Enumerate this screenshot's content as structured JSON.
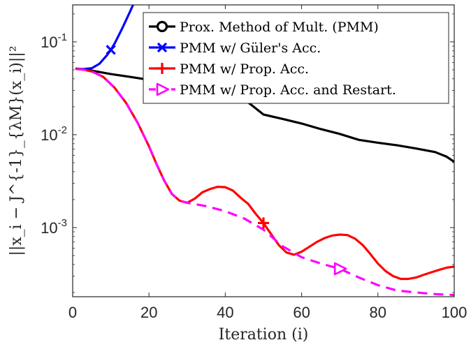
{
  "chart_data": {
    "type": "line",
    "title": "",
    "xlabel": "Iteration (i)",
    "ylabel": "||x_i − J^{-1}_{λM}(x_i)||²",
    "xlim": [
      0,
      100
    ],
    "ylim": [
      0.00018,
      0.25
    ],
    "yscale": "log",
    "grid": false,
    "legend_position": "top-right",
    "x_ticks": [
      0,
      20,
      40,
      60,
      80,
      100
    ],
    "x_tick_labels": [
      "0",
      "20",
      "40",
      "60",
      "80",
      "100"
    ],
    "y_ticks": [
      0.001,
      0.01,
      0.1
    ],
    "y_tick_labels": [
      {
        "base": "10",
        "exp": "-3"
      },
      {
        "base": "10",
        "exp": "-2"
      },
      {
        "base": "10",
        "exp": "-1"
      }
    ],
    "series": [
      {
        "name": "Prox. Method of Mult. (PMM)",
        "color": "#000000",
        "dash": "solid",
        "marker": "circle",
        "marker_x": [],
        "x": [
          1,
          5,
          10,
          15,
          20,
          25,
          30,
          35,
          40,
          45,
          50,
          55,
          60,
          65,
          70,
          75,
          80,
          85,
          90,
          95,
          98,
          100
        ],
        "y": [
          0.0515,
          0.049,
          0.045,
          0.042,
          0.039,
          0.036,
          0.033,
          0.03,
          0.027,
          0.024,
          0.0165,
          0.0148,
          0.0132,
          0.0115,
          0.0102,
          0.0088,
          0.0082,
          0.0077,
          0.0071,
          0.0065,
          0.0058,
          0.0051
        ]
      },
      {
        "name": "PMM w/ Güler's Acc.",
        "color": "#0000ff",
        "dash": "solid",
        "marker": "x",
        "marker_x": [
          10
        ],
        "x": [
          1,
          3,
          5,
          7,
          9,
          10,
          11,
          13,
          15,
          16
        ],
        "y": [
          0.051,
          0.051,
          0.052,
          0.058,
          0.072,
          0.082,
          0.096,
          0.14,
          0.21,
          0.26
        ]
      },
      {
        "name": "PMM w/ Prop. Acc.",
        "color": "#ff0000",
        "dash": "solid",
        "marker": "plus",
        "marker_x": [
          50
        ],
        "x": [
          1,
          3,
          5,
          8,
          11,
          14,
          17,
          20,
          22,
          24,
          26,
          28,
          30,
          32,
          34,
          36,
          38,
          40,
          42,
          44,
          46,
          48,
          50,
          52,
          54,
          56,
          58,
          60,
          62,
          64,
          66,
          68,
          70,
          72,
          74,
          76,
          78,
          80,
          82,
          84,
          86,
          88,
          90,
          92,
          94,
          96,
          98,
          100
        ],
        "y": [
          0.051,
          0.05,
          0.048,
          0.042,
          0.032,
          0.022,
          0.0135,
          0.0075,
          0.0048,
          0.0032,
          0.0023,
          0.00195,
          0.00185,
          0.00205,
          0.0024,
          0.0026,
          0.00275,
          0.00272,
          0.0025,
          0.0021,
          0.0018,
          0.0014,
          0.00112,
          0.00085,
          0.00065,
          0.00054,
          0.00051,
          0.00055,
          0.00062,
          0.0007,
          0.00077,
          0.00082,
          0.00084,
          0.00083,
          0.00076,
          0.00065,
          0.00052,
          0.00041,
          0.00034,
          0.0003,
          0.00028,
          0.00028,
          0.00029,
          0.00031,
          0.00033,
          0.00035,
          0.00037,
          0.00038
        ]
      },
      {
        "name": "PMM w/ Prop. Acc. and Restart.",
        "color": "#ff00ff",
        "dash": "dashed",
        "marker": "triangle-right",
        "marker_x": [
          70
        ],
        "x": [
          1,
          3,
          5,
          8,
          11,
          14,
          17,
          20,
          22,
          24,
          26,
          28,
          30,
          35,
          40,
          45,
          50,
          55,
          60,
          65,
          70,
          75,
          80,
          85,
          90,
          95,
          100
        ],
        "y": [
          0.051,
          0.05,
          0.048,
          0.042,
          0.032,
          0.022,
          0.0135,
          0.0075,
          0.0048,
          0.0032,
          0.0023,
          0.00195,
          0.00185,
          0.0017,
          0.0015,
          0.00125,
          0.00095,
          0.00063,
          0.00048,
          0.00041,
          0.00036,
          0.00029,
          0.00024,
          0.00021,
          0.0002,
          0.000192,
          0.000188
        ]
      }
    ]
  }
}
